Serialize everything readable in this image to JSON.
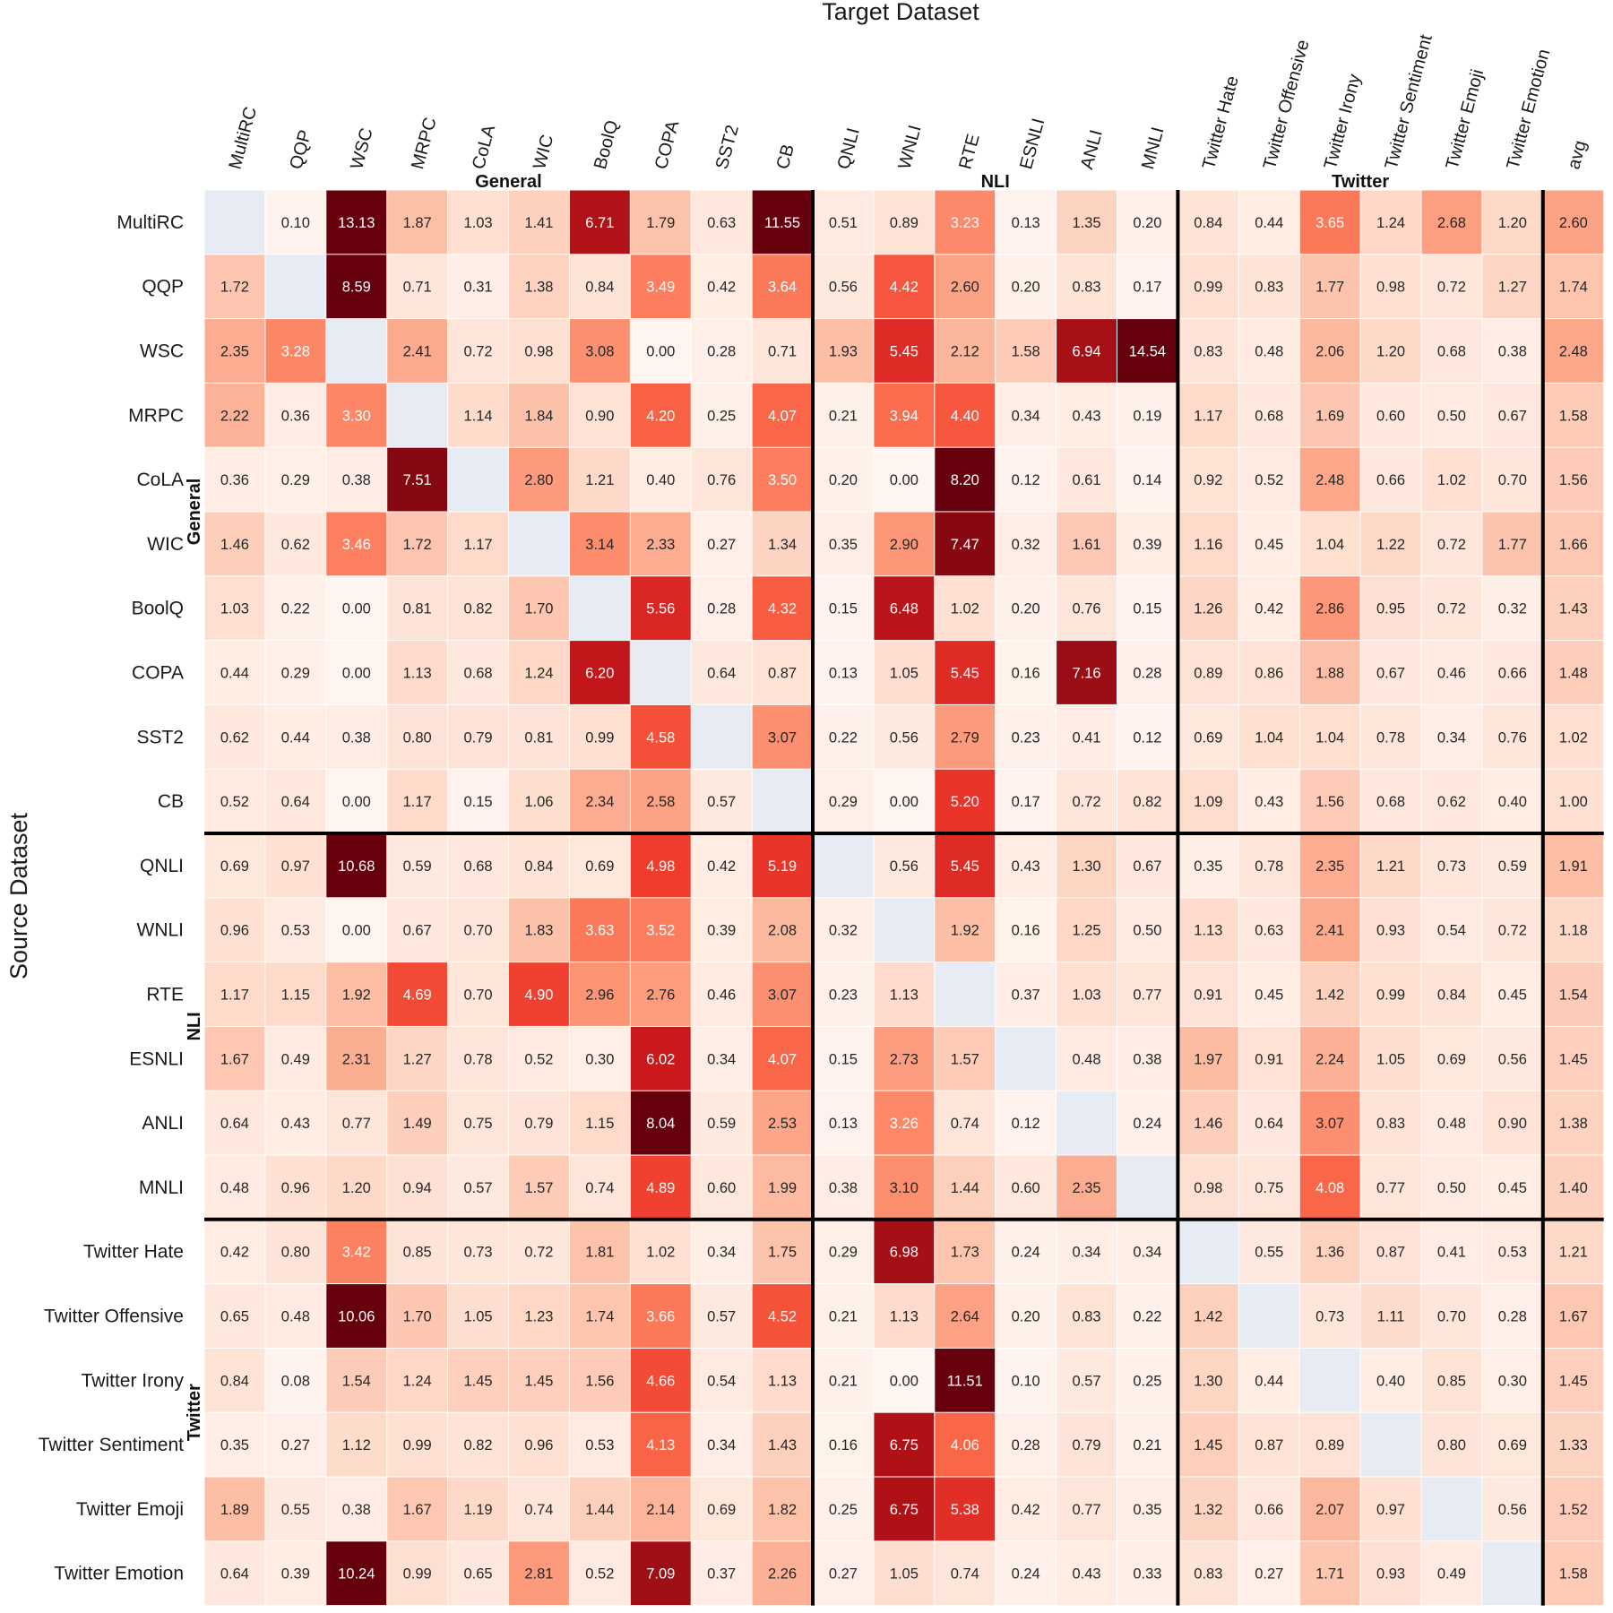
{
  "chart_data": {
    "type": "heatmap",
    "title": "",
    "xlabel": "Target Dataset",
    "ylabel": "Source Dataset",
    "x_categories": [
      "MultiRC",
      "QQP",
      "WSC",
      "MRPC",
      "CoLA",
      "WIC",
      "BoolQ",
      "COPA",
      "SST2",
      "CB",
      "QNLI",
      "WNLI",
      "RTE",
      "ESNLI",
      "ANLI",
      "MNLI",
      "Twitter Hate",
      "Twitter Offensive",
      "Twitter Irony",
      "Twitter Sentiment",
      "Twitter Emoji",
      "Twitter Emotion",
      "avg"
    ],
    "y_categories": [
      "MultiRC",
      "QQP",
      "WSC",
      "MRPC",
      "CoLA",
      "WIC",
      "BoolQ",
      "COPA",
      "SST2",
      "CB",
      "QNLI",
      "WNLI",
      "RTE",
      "ESNLI",
      "ANLI",
      "MNLI",
      "Twitter Hate",
      "Twitter Offensive",
      "Twitter Irony",
      "Twitter Sentiment",
      "Twitter Emoji",
      "Twitter Emotion"
    ],
    "x_groups": [
      {
        "label": "General",
        "start": 0,
        "end": 9
      },
      {
        "label": "NLI",
        "start": 10,
        "end": 15
      },
      {
        "label": "Twitter",
        "start": 16,
        "end": 21
      }
    ],
    "y_groups": [
      {
        "label": "General",
        "start": 0,
        "end": 9
      },
      {
        "label": "NLI",
        "start": 10,
        "end": 15
      },
      {
        "label": "Twitter",
        "start": 16,
        "end": 21
      }
    ],
    "value_range": [
      0,
      8
    ],
    "colormap": "Reds",
    "diagonal_color": "#e6ebf4",
    "values": [
      [
        null,
        0.1,
        13.13,
        1.87,
        1.03,
        1.41,
        6.71,
        1.79,
        0.63,
        11.55,
        0.51,
        0.89,
        3.23,
        0.13,
        1.35,
        0.2,
        0.84,
        0.44,
        3.65,
        1.24,
        2.68,
        1.2,
        2.6
      ],
      [
        1.72,
        null,
        8.59,
        0.71,
        0.31,
        1.38,
        0.84,
        3.49,
        0.42,
        3.64,
        0.56,
        4.42,
        2.6,
        0.2,
        0.83,
        0.17,
        0.99,
        0.83,
        1.77,
        0.98,
        0.72,
        1.27,
        1.74
      ],
      [
        2.35,
        3.28,
        null,
        2.41,
        0.72,
        0.98,
        3.08,
        0.0,
        0.28,
        0.71,
        1.93,
        5.45,
        2.12,
        1.58,
        6.94,
        14.54,
        0.83,
        0.48,
        2.06,
        1.2,
        0.68,
        0.38,
        2.48
      ],
      [
        2.22,
        0.36,
        3.3,
        null,
        1.14,
        1.84,
        0.9,
        4.2,
        0.25,
        4.07,
        0.21,
        3.94,
        4.4,
        0.34,
        0.43,
        0.19,
        1.17,
        0.68,
        1.69,
        0.6,
        0.5,
        0.67,
        1.58
      ],
      [
        0.36,
        0.29,
        0.38,
        7.51,
        null,
        2.8,
        1.21,
        0.4,
        0.76,
        3.5,
        0.2,
        0.0,
        8.2,
        0.12,
        0.61,
        0.14,
        0.92,
        0.52,
        2.48,
        0.66,
        1.02,
        0.7,
        1.56
      ],
      [
        1.46,
        0.62,
        3.46,
        1.72,
        1.17,
        null,
        3.14,
        2.33,
        0.27,
        1.34,
        0.35,
        2.9,
        7.47,
        0.32,
        1.61,
        0.39,
        1.16,
        0.45,
        1.04,
        1.22,
        0.72,
        1.77,
        1.66
      ],
      [
        1.03,
        0.22,
        0.0,
        0.81,
        0.82,
        1.7,
        null,
        5.56,
        0.28,
        4.32,
        0.15,
        6.48,
        1.02,
        0.2,
        0.76,
        0.15,
        1.26,
        0.42,
        2.86,
        0.95,
        0.72,
        0.32,
        1.43
      ],
      [
        0.44,
        0.29,
        0.0,
        1.13,
        0.68,
        1.24,
        6.2,
        null,
        0.64,
        0.87,
        0.13,
        1.05,
        5.45,
        0.16,
        7.16,
        0.28,
        0.89,
        0.86,
        1.88,
        0.67,
        0.46,
        0.66,
        1.48
      ],
      [
        0.62,
        0.44,
        0.38,
        0.8,
        0.79,
        0.81,
        0.99,
        4.58,
        null,
        3.07,
        0.22,
        0.56,
        2.79,
        0.23,
        0.41,
        0.12,
        0.69,
        1.04,
        1.04,
        0.78,
        0.34,
        0.76,
        1.02
      ],
      [
        0.52,
        0.64,
        0.0,
        1.17,
        0.15,
        1.06,
        2.34,
        2.58,
        0.57,
        null,
        0.29,
        0.0,
        5.2,
        0.17,
        0.72,
        0.82,
        1.09,
        0.43,
        1.56,
        0.68,
        0.62,
        0.4,
        1.0
      ],
      [
        0.69,
        0.97,
        10.68,
        0.59,
        0.68,
        0.84,
        0.69,
        4.98,
        0.42,
        5.19,
        null,
        0.56,
        5.45,
        0.43,
        1.3,
        0.67,
        0.35,
        0.78,
        2.35,
        1.21,
        0.73,
        0.59,
        1.91
      ],
      [
        0.96,
        0.53,
        0.0,
        0.67,
        0.7,
        1.83,
        3.63,
        3.52,
        0.39,
        2.08,
        0.32,
        null,
        1.92,
        0.16,
        1.25,
        0.5,
        1.13,
        0.63,
        2.41,
        0.93,
        0.54,
        0.72,
        1.18
      ],
      [
        1.17,
        1.15,
        1.92,
        4.69,
        0.7,
        4.9,
        2.96,
        2.76,
        0.46,
        3.07,
        0.23,
        1.13,
        null,
        0.37,
        1.03,
        0.77,
        0.91,
        0.45,
        1.42,
        0.99,
        0.84,
        0.45,
        1.54
      ],
      [
        1.67,
        0.49,
        2.31,
        1.27,
        0.78,
        0.52,
        0.3,
        6.02,
        0.34,
        4.07,
        0.15,
        2.73,
        1.57,
        null,
        0.48,
        0.38,
        1.97,
        0.91,
        2.24,
        1.05,
        0.69,
        0.56,
        1.45
      ],
      [
        0.64,
        0.43,
        0.77,
        1.49,
        0.75,
        0.79,
        1.15,
        8.04,
        0.59,
        2.53,
        0.13,
        3.26,
        0.74,
        0.12,
        null,
        0.24,
        1.46,
        0.64,
        3.07,
        0.83,
        0.48,
        0.9,
        1.38
      ],
      [
        0.48,
        0.96,
        1.2,
        0.94,
        0.57,
        1.57,
        0.74,
        4.89,
        0.6,
        1.99,
        0.38,
        3.1,
        1.44,
        0.6,
        2.35,
        null,
        0.98,
        0.75,
        4.08,
        0.77,
        0.5,
        0.45,
        1.4
      ],
      [
        0.42,
        0.8,
        3.42,
        0.85,
        0.73,
        0.72,
        1.81,
        1.02,
        0.34,
        1.75,
        0.29,
        6.98,
        1.73,
        0.24,
        0.34,
        0.34,
        null,
        0.55,
        1.36,
        0.87,
        0.41,
        0.53,
        1.21
      ],
      [
        0.65,
        0.48,
        10.06,
        1.7,
        1.05,
        1.23,
        1.74,
        3.66,
        0.57,
        4.52,
        0.21,
        1.13,
        2.64,
        0.2,
        0.83,
        0.22,
        1.42,
        null,
        0.73,
        1.11,
        0.7,
        0.28,
        1.67
      ],
      [
        0.84,
        0.08,
        1.54,
        1.24,
        1.45,
        1.45,
        1.56,
        4.66,
        0.54,
        1.13,
        0.21,
        0.0,
        11.51,
        0.1,
        0.57,
        0.25,
        1.3,
        0.44,
        null,
        0.4,
        0.85,
        0.3,
        1.45
      ],
      [
        0.35,
        0.27,
        1.12,
        0.99,
        0.82,
        0.96,
        0.53,
        4.13,
        0.34,
        1.43,
        0.16,
        6.75,
        4.06,
        0.28,
        0.79,
        0.21,
        1.45,
        0.87,
        0.89,
        null,
        0.8,
        0.69,
        1.33
      ],
      [
        1.89,
        0.55,
        0.38,
        1.67,
        1.19,
        0.74,
        1.44,
        2.14,
        0.69,
        1.82,
        0.25,
        6.75,
        5.38,
        0.42,
        0.77,
        0.35,
        1.32,
        0.66,
        2.07,
        0.97,
        null,
        0.56,
        1.52
      ],
      [
        0.64,
        0.39,
        10.24,
        0.99,
        0.65,
        2.81,
        0.52,
        7.09,
        0.37,
        2.26,
        0.27,
        1.05,
        0.74,
        0.24,
        0.43,
        0.33,
        0.83,
        0.27,
        1.71,
        0.93,
        0.49,
        null,
        1.58
      ]
    ]
  }
}
